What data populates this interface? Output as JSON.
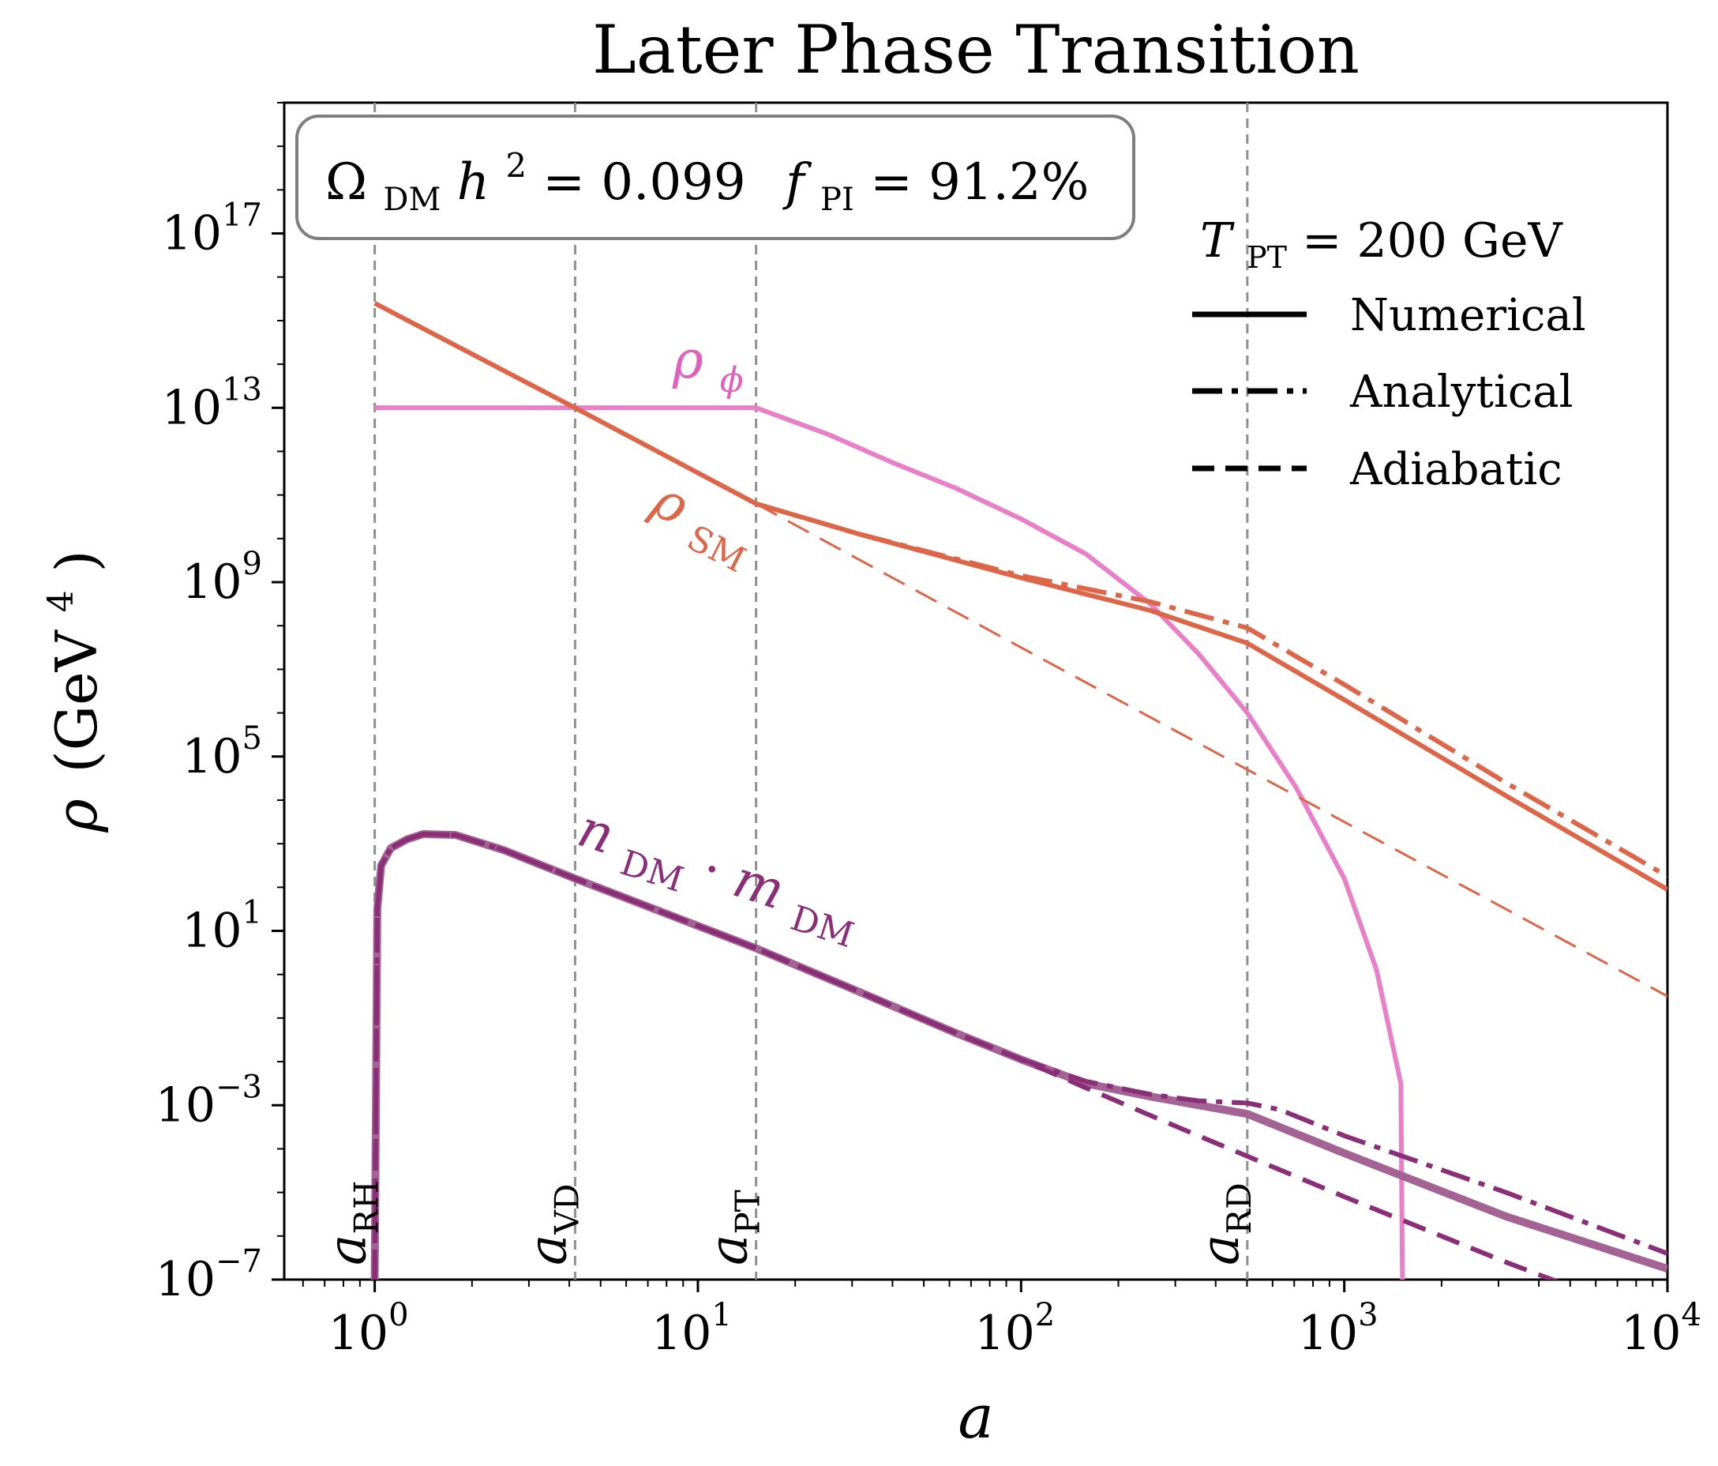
{
  "chart_data": {
    "type": "line",
    "title": "Later Phase Transition",
    "xlabel": "a",
    "ylabel_symbol": "ρ",
    "ylabel_unit": "(GeV",
    "ylabel_unit_exp": "4",
    "ylabel_close": ")",
    "xscale": "log",
    "yscale": "log",
    "xlim_log10": [
      -0.28,
      4
    ],
    "ylim_log10": [
      -7,
      20
    ],
    "x_ticks": [
      {
        "exp": 0,
        "base": "10",
        "sup": "0"
      },
      {
        "exp": 1,
        "base": "10",
        "sup": "1"
      },
      {
        "exp": 2,
        "base": "10",
        "sup": "2"
      },
      {
        "exp": 3,
        "base": "10",
        "sup": "3"
      },
      {
        "exp": 4,
        "base": "10",
        "sup": "4"
      }
    ],
    "y_ticks": [
      {
        "exp": -7,
        "base": "10",
        "sup": "−7"
      },
      {
        "exp": -3,
        "base": "10",
        "sup": "−3"
      },
      {
        "exp": 1,
        "base": "10",
        "sup": "1"
      },
      {
        "exp": 5,
        "base": "10",
        "sup": "5"
      },
      {
        "exp": 9,
        "base": "10",
        "sup": "9"
      },
      {
        "exp": 13,
        "base": "10",
        "sup": "13"
      },
      {
        "exp": 17,
        "base": "10",
        "sup": "17"
      }
    ],
    "info_box": {
      "omega_symbol": "Ω",
      "omega_sub": "DM",
      "omega_h": "h",
      "omega_h_exp": "2",
      "omega_value": " = 0.099",
      "f_symbol": "f",
      "f_sub": "PI",
      "f_value": " = 91.2%"
    },
    "legend": {
      "position": "top-right",
      "title_symbol": "T",
      "title_sub": "PT",
      "title_value": " = 200 GeV",
      "entries": [
        {
          "label": "Numerical",
          "style": "solid"
        },
        {
          "label": "Analytical",
          "style": "dashdot"
        },
        {
          "label": "Adiabatic",
          "style": "dashed"
        }
      ]
    },
    "vlines": [
      {
        "name": "a-rh",
        "log10_x": 0.0,
        "symbol": "a",
        "sub": "RH"
      },
      {
        "name": "a-vd",
        "log10_x": 0.62,
        "symbol": "a",
        "sub": "VD"
      },
      {
        "name": "a-pt",
        "log10_x": 1.18,
        "symbol": "a",
        "sub": "PT"
      },
      {
        "name": "a-rd",
        "log10_x": 2.7,
        "symbol": "a",
        "sub": "RD"
      }
    ],
    "curve_labels": [
      {
        "name": "rho-phi",
        "symbol": "ρ",
        "sub": "ϕ",
        "color_key": "phi"
      },
      {
        "name": "rho-sm",
        "symbol": "ρ",
        "sub": "SM",
        "color_key": "sm"
      },
      {
        "name": "n-dm-m-dm",
        "symbol1": "n",
        "sub1": "DM",
        "dot": " · ",
        "symbol2": "m",
        "sub2": "DM",
        "color_key": "dm"
      }
    ],
    "colors": {
      "phi": "#e97fc7",
      "sm": "#dd6548",
      "dm": "#8a2e78",
      "dm_numerical": "#a46493",
      "vline": "#909090"
    },
    "series": [
      {
        "name": "rho_phi numerical",
        "color_key": "phi",
        "style": "solid",
        "points_log10": [
          [
            0,
            13
          ],
          [
            1.18,
            13
          ],
          [
            1.4,
            12.4
          ],
          [
            1.6,
            11.75
          ],
          [
            1.8,
            11.15
          ],
          [
            2.0,
            10.45
          ],
          [
            2.2,
            9.65
          ],
          [
            2.4,
            8.5
          ],
          [
            2.55,
            7.35
          ],
          [
            2.7,
            6.0
          ],
          [
            2.85,
            4.3
          ],
          [
            3.0,
            2.2
          ],
          [
            3.1,
            0.1
          ],
          [
            3.175,
            -2.5
          ],
          [
            3.18,
            -7.0
          ]
        ]
      },
      {
        "name": "rho_SM numerical",
        "color_key": "sm",
        "style": "solid",
        "points_log10": [
          [
            0,
            15.4
          ],
          [
            0.62,
            13.0
          ],
          [
            1.18,
            10.8
          ],
          [
            1.5,
            10.1
          ],
          [
            2.0,
            9.1
          ],
          [
            2.4,
            8.35
          ],
          [
            2.7,
            7.6
          ],
          [
            3.0,
            6.3
          ],
          [
            3.5,
            4.1
          ],
          [
            4.0,
            1.95
          ]
        ]
      },
      {
        "name": "rho_SM analytical",
        "color_key": "sm",
        "style": "dashdot",
        "points_log10": [
          [
            1.18,
            10.8
          ],
          [
            1.5,
            10.1
          ],
          [
            2.0,
            9.15
          ],
          [
            2.4,
            8.55
          ],
          [
            2.7,
            7.95
          ],
          [
            3.0,
            6.65
          ],
          [
            3.5,
            4.4
          ],
          [
            4.0,
            2.25
          ]
        ]
      },
      {
        "name": "rho_SM adiabatic",
        "color_key": "sm",
        "style": "dashed",
        "points_log10": [
          [
            1.18,
            10.8
          ],
          [
            2.0,
            7.5
          ],
          [
            3.0,
            3.5
          ],
          [
            4.0,
            -0.5
          ]
        ]
      },
      {
        "name": "n_DM m_DM numerical",
        "color_key": "dm_numerical",
        "style": "solid",
        "points_log10": [
          [
            0.0,
            -7.0
          ],
          [
            0.008,
            1.5
          ],
          [
            0.02,
            2.5
          ],
          [
            0.05,
            2.9
          ],
          [
            0.1,
            3.1
          ],
          [
            0.15,
            3.22
          ],
          [
            0.25,
            3.2
          ],
          [
            0.4,
            2.85
          ],
          [
            0.62,
            2.2
          ],
          [
            0.9,
            1.4
          ],
          [
            1.18,
            0.6
          ],
          [
            1.5,
            -0.4
          ],
          [
            1.8,
            -1.35
          ],
          [
            2.0,
            -1.95
          ],
          [
            2.2,
            -2.5
          ],
          [
            2.4,
            -2.8
          ],
          [
            2.55,
            -3.0
          ],
          [
            2.7,
            -3.2
          ],
          [
            3.0,
            -4.1
          ],
          [
            3.5,
            -5.55
          ],
          [
            4.0,
            -6.75
          ]
        ]
      },
      {
        "name": "n_DM m_DM analytical",
        "color_key": "dm",
        "style": "dashdot",
        "points_log10": [
          [
            0.0,
            -7.0
          ],
          [
            0.008,
            1.5
          ],
          [
            0.02,
            2.5
          ],
          [
            0.05,
            2.9
          ],
          [
            0.1,
            3.1
          ],
          [
            0.15,
            3.22
          ],
          [
            0.25,
            3.2
          ],
          [
            0.4,
            2.85
          ],
          [
            0.62,
            2.2
          ],
          [
            0.9,
            1.4
          ],
          [
            1.18,
            0.6
          ],
          [
            1.5,
            -0.4
          ],
          [
            1.8,
            -1.35
          ],
          [
            2.0,
            -1.95
          ],
          [
            2.2,
            -2.45
          ],
          [
            2.4,
            -2.75
          ],
          [
            2.55,
            -2.9
          ],
          [
            2.7,
            -2.95
          ],
          [
            2.8,
            -3.1
          ],
          [
            3.0,
            -3.7
          ],
          [
            3.5,
            -5.0
          ],
          [
            4.0,
            -6.4
          ]
        ]
      },
      {
        "name": "n_DM m_DM adiabatic",
        "color_key": "dm",
        "style": "dashed",
        "points_log10": [
          [
            0.0,
            -7.0
          ],
          [
            0.008,
            1.5
          ],
          [
            0.02,
            2.5
          ],
          [
            0.05,
            2.9
          ],
          [
            0.1,
            3.1
          ],
          [
            0.15,
            3.22
          ],
          [
            0.25,
            3.2
          ],
          [
            0.4,
            2.85
          ],
          [
            0.62,
            2.2
          ],
          [
            0.9,
            1.4
          ],
          [
            1.18,
            0.6
          ],
          [
            1.5,
            -0.4
          ],
          [
            1.8,
            -1.35
          ],
          [
            2.0,
            -1.95
          ],
          [
            2.2,
            -2.6
          ],
          [
            2.5,
            -3.55
          ],
          [
            3.0,
            -5.1
          ],
          [
            3.5,
            -6.6
          ],
          [
            3.75,
            -7.3
          ]
        ]
      }
    ]
  }
}
